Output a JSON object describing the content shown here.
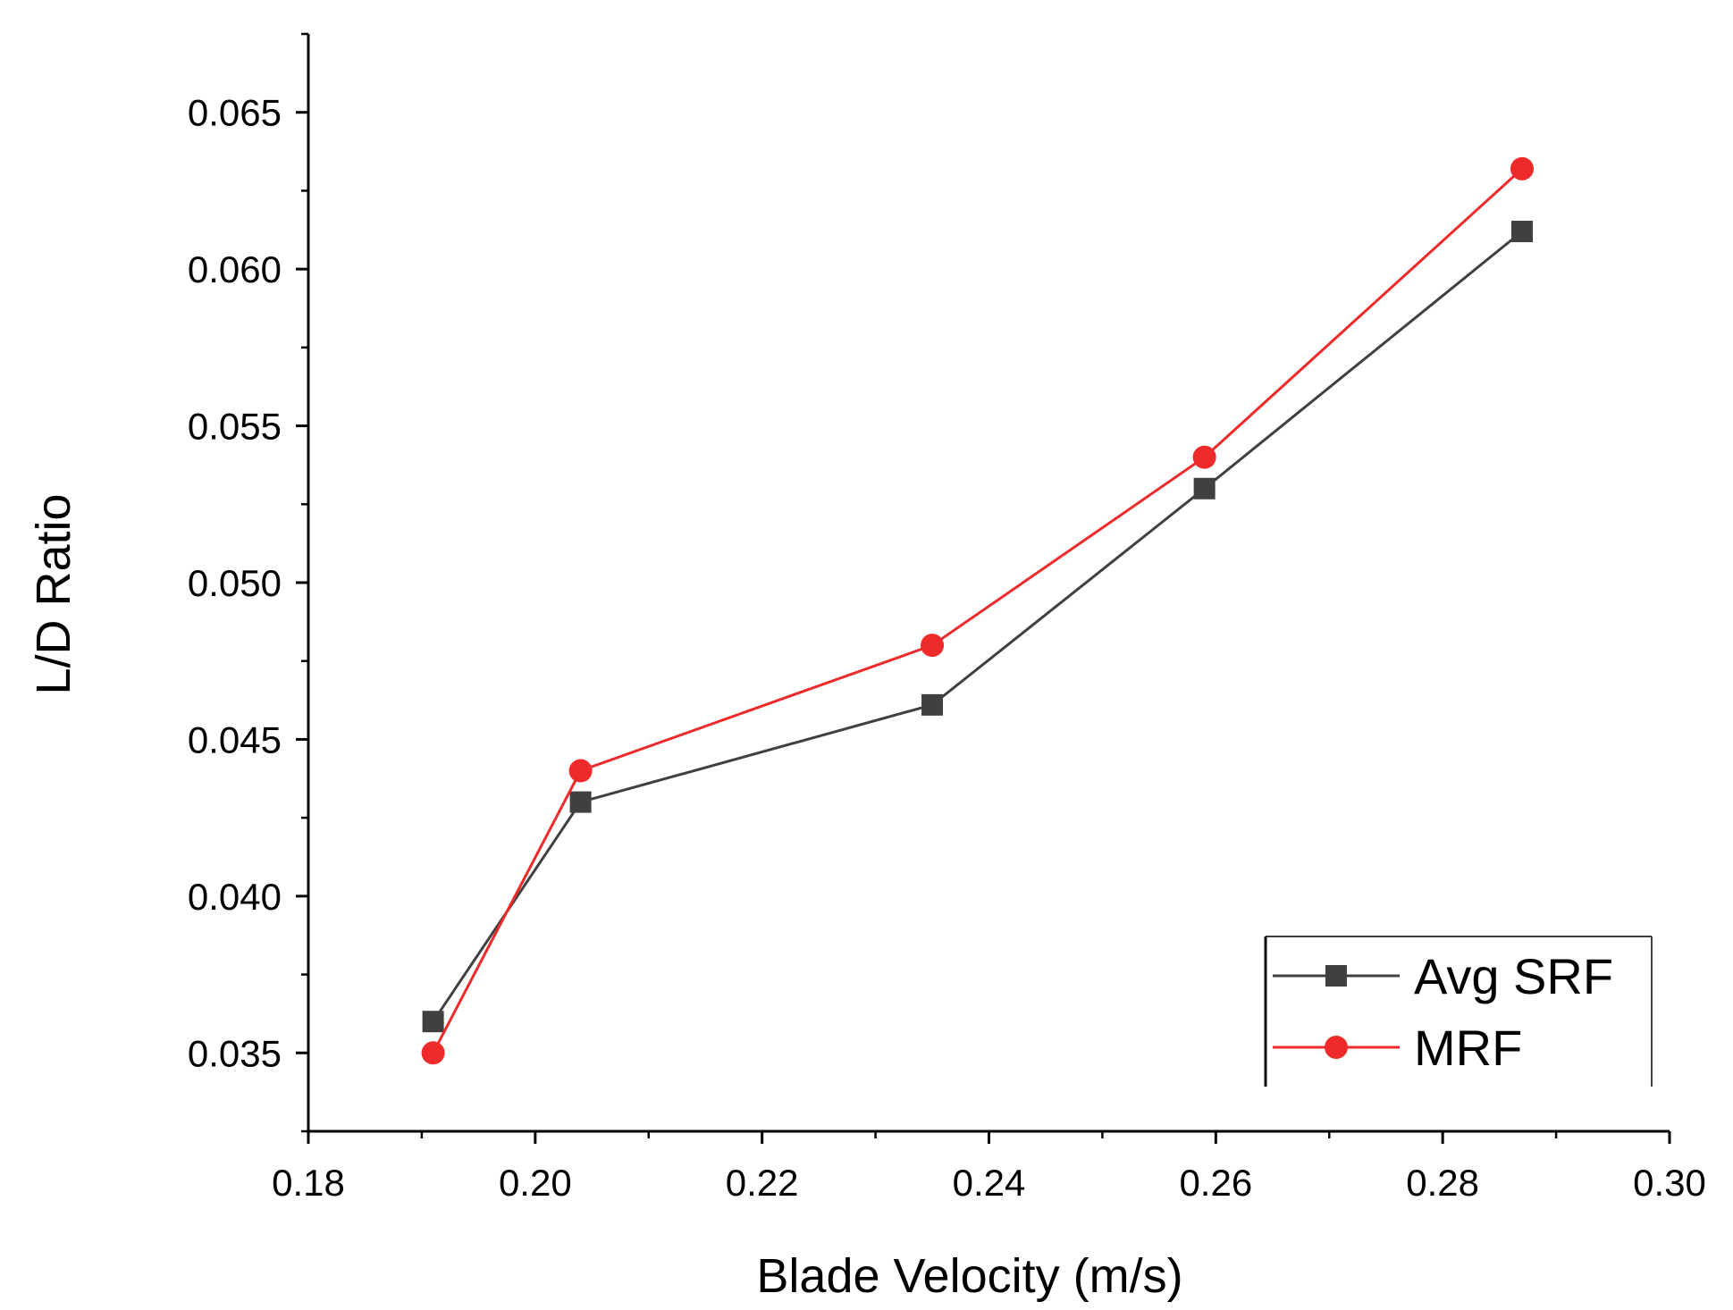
{
  "chart_data": {
    "type": "line",
    "title": "",
    "xlabel": "Blade Velocity (m/s)",
    "ylabel": "L/D Ratio",
    "xlim": [
      0.18,
      0.3
    ],
    "ylim": [
      0.0325,
      0.0675
    ],
    "x_ticks": [
      "0.18",
      "0.20",
      "0.22",
      "0.24",
      "0.26",
      "0.28",
      "0.30"
    ],
    "y_ticks": [
      "0.035",
      "0.040",
      "0.045",
      "0.050",
      "0.055",
      "0.060",
      "0.065"
    ],
    "legend_position": "bottom-right",
    "series": [
      {
        "name": "Avg SRF",
        "color": "#404040",
        "marker": "square",
        "x": [
          0.191,
          0.204,
          0.235,
          0.259,
          0.287
        ],
        "y": [
          0.036,
          0.043,
          0.0461,
          0.053,
          0.0612
        ]
      },
      {
        "name": "MRF",
        "color": "#ee2a2a",
        "marker": "circle",
        "x": [
          0.191,
          0.204,
          0.235,
          0.259,
          0.287
        ],
        "y": [
          0.035,
          0.044,
          0.048,
          0.054,
          0.0632
        ]
      }
    ]
  }
}
